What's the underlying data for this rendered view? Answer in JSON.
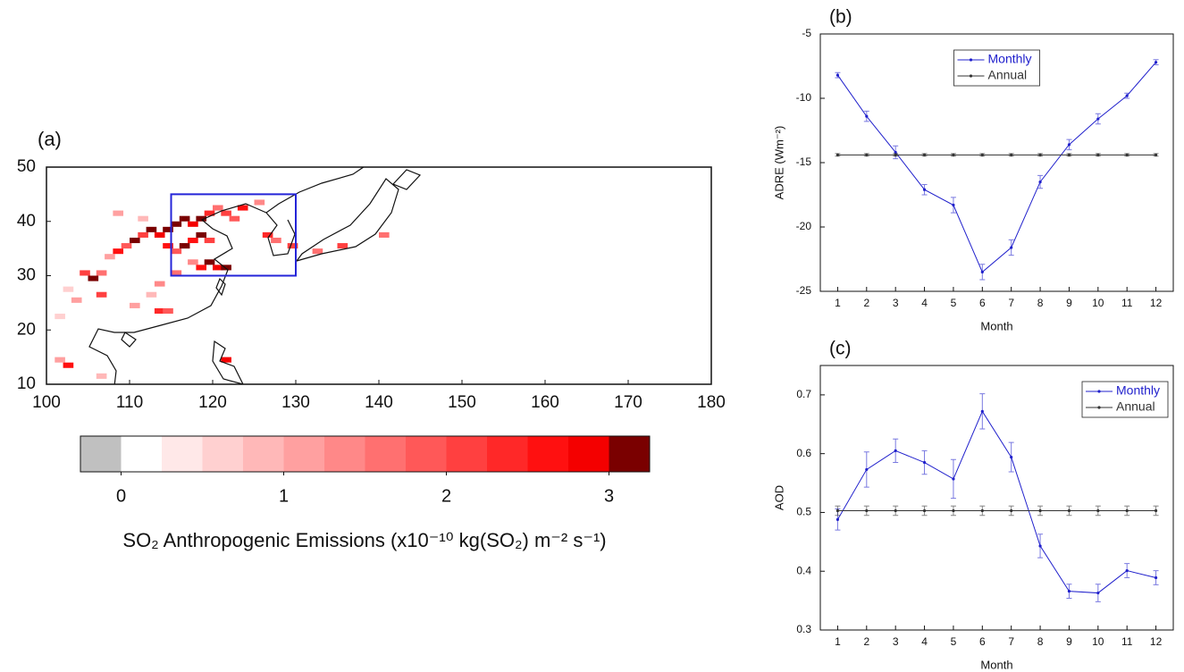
{
  "chart_data": [
    {
      "type": "map",
      "label": "(a)",
      "xlim": [
        100,
        180
      ],
      "ylim": [
        10,
        50
      ],
      "xticks": [
        100,
        110,
        120,
        130,
        140,
        150,
        160,
        170,
        180
      ],
      "yticks": [
        10,
        20,
        30,
        40,
        50
      ],
      "cells": {
        "lon": [
          104,
          105,
          106,
          107,
          108,
          109,
          110,
          111,
          112,
          113,
          114,
          115,
          116,
          117,
          118,
          119,
          120,
          121,
          114,
          115,
          116,
          117,
          118,
          119,
          117,
          118,
          119,
          120,
          121,
          115,
          113,
          112,
          110,
          113,
          114,
          106,
          103,
          102,
          101,
          102,
          106,
          122,
          123,
          125,
          126,
          127,
          129,
          132,
          135,
          140,
          101,
          121,
          108,
          111
        ],
        "lat": [
          30,
          29,
          30,
          33,
          34,
          35,
          36,
          37,
          38,
          37,
          38,
          39,
          40,
          39,
          40,
          41,
          42,
          41,
          35,
          34,
          35,
          36,
          37,
          36,
          32,
          31,
          32,
          31,
          31,
          30,
          28,
          26,
          24,
          23,
          23,
          26,
          25,
          27,
          14,
          13,
          11,
          40,
          42,
          43,
          37,
          36,
          35,
          34,
          35,
          37,
          22,
          14,
          41,
          40
        ],
        "values": [
          2.2,
          3.0,
          1.5,
          1.2,
          2.5,
          1.8,
          3.1,
          2.0,
          3.2,
          2.8,
          3.3,
          3.1,
          3.4,
          2.9,
          3.2,
          2.4,
          1.6,
          2.1,
          2.6,
          1.9,
          3.0,
          2.7,
          3.1,
          2.2,
          1.4,
          2.5,
          3.0,
          2.8,
          3.2,
          1.7,
          1.3,
          0.9,
          1.1,
          2.3,
          1.8,
          2.0,
          1.0,
          0.6,
          1.2,
          2.6,
          0.8,
          1.9,
          2.5,
          1.4,
          2.4,
          1.7,
          2.0,
          1.5,
          2.2,
          1.6,
          0.7,
          2.8,
          1.1,
          0.8
        ]
      },
      "region": {
        "lon": [
          115,
          130
        ],
        "lat": [
          30,
          45
        ],
        "color": "#2424d8"
      },
      "colorbar": {
        "label": "SO₂ Anthropogenic Emissions (x10⁻¹⁰ kg(SO₂) m⁻² s⁻¹)",
        "bounds": [
          -0.25,
          0,
          0.25,
          0.5,
          0.75,
          1,
          1.25,
          1.5,
          1.75,
          2,
          2.25,
          2.5,
          2.75,
          3,
          3.25
        ],
        "colors": [
          "#c0c0c0",
          "#ffffff",
          "#ffe8e8",
          "#ffd0d0",
          "#ffb8b8",
          "#ffa0a0",
          "#ff8888",
          "#ff7070",
          "#ff5858",
          "#ff4040",
          "#ff2828",
          "#ff1010",
          "#f40000",
          "#7a0000"
        ],
        "ticks": [
          0,
          1,
          2,
          3
        ]
      }
    },
    {
      "type": "line",
      "label": "(b)",
      "xlabel": "Month",
      "ylabel": "ADRE (Wm⁻²)",
      "x": [
        1,
        2,
        3,
        4,
        5,
        6,
        7,
        8,
        9,
        10,
        11,
        12
      ],
      "xlim": [
        0.4,
        12.6
      ],
      "ylim": [
        -25,
        -5
      ],
      "xticks": [
        1,
        2,
        3,
        4,
        5,
        6,
        7,
        8,
        9,
        10,
        11,
        12
      ],
      "yticks": [
        -25,
        -20,
        -15,
        -10,
        -5
      ],
      "legend": "upper center",
      "series": [
        {
          "name": "Monthly",
          "color": "#2020cc",
          "values": [
            -8.2,
            -11.4,
            -14.2,
            -17.1,
            -18.3,
            -23.5,
            -21.6,
            -16.5,
            -13.6,
            -11.6,
            -9.8,
            -7.2
          ],
          "errors": [
            0.2,
            0.4,
            0.5,
            0.4,
            0.6,
            0.6,
            0.6,
            0.5,
            0.4,
            0.4,
            0.2,
            0.2
          ]
        },
        {
          "name": "Annual",
          "color": "#333333",
          "values": [
            -14.4,
            -14.4,
            -14.4,
            -14.4,
            -14.4,
            -14.4,
            -14.4,
            -14.4,
            -14.4,
            -14.4,
            -14.4,
            -14.4
          ],
          "errors": [
            0.1,
            0.1,
            0.1,
            0.1,
            0.1,
            0.1,
            0.1,
            0.1,
            0.1,
            0.1,
            0.1,
            0.1
          ]
        }
      ]
    },
    {
      "type": "line",
      "label": "(c)",
      "xlabel": "Month",
      "ylabel": "AOD",
      "x": [
        1,
        2,
        3,
        4,
        5,
        6,
        7,
        8,
        9,
        10,
        11,
        12
      ],
      "xlim": [
        0.4,
        12.6
      ],
      "ylim": [
        0.3,
        0.75
      ],
      "xticks": [
        1,
        2,
        3,
        4,
        5,
        6,
        7,
        8,
        9,
        10,
        11,
        12
      ],
      "yticks": [
        0.3,
        0.4,
        0.5,
        0.6,
        0.7
      ],
      "legend": "upper right",
      "series": [
        {
          "name": "Monthly",
          "color": "#2020cc",
          "values": [
            0.488,
            0.573,
            0.605,
            0.585,
            0.557,
            0.672,
            0.594,
            0.443,
            0.366,
            0.363,
            0.401,
            0.389
          ],
          "errors": [
            0.018,
            0.03,
            0.02,
            0.02,
            0.033,
            0.03,
            0.025,
            0.02,
            0.012,
            0.015,
            0.012,
            0.012
          ]
        },
        {
          "name": "Annual",
          "color": "#333333",
          "values": [
            0.503,
            0.503,
            0.503,
            0.503,
            0.503,
            0.503,
            0.503,
            0.503,
            0.503,
            0.503,
            0.503,
            0.503
          ],
          "errors": [
            0.008,
            0.008,
            0.008,
            0.008,
            0.008,
            0.008,
            0.008,
            0.008,
            0.008,
            0.008,
            0.008,
            0.008
          ]
        }
      ]
    }
  ]
}
